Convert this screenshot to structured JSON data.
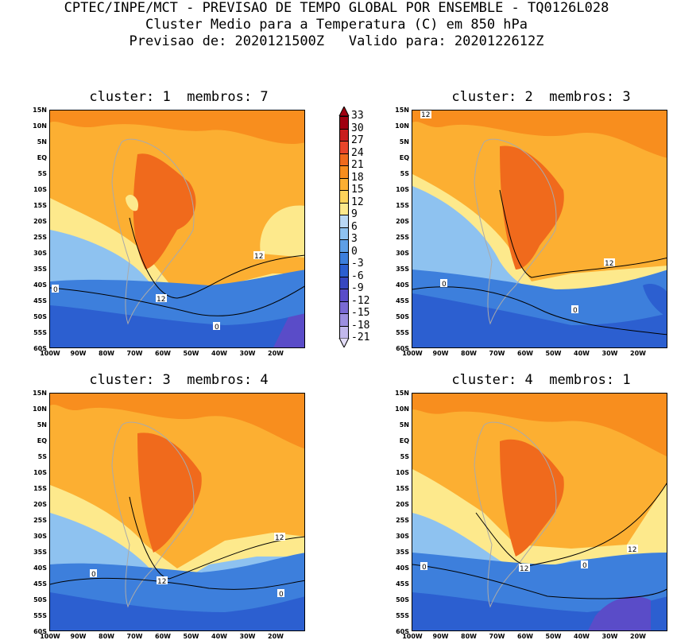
{
  "header": {
    "line1": "CPTEC/INPE/MCT - PREVISAO DE TEMPO GLOBAL POR ENSEMBLE - TQ0126L028",
    "line2": "Cluster Medio para a Temperatura (C) em 850 hPa",
    "line3": "Previsao de: 2020121500Z   Valido para: 2020122612Z"
  },
  "panels": [
    {
      "title": "cluster: 1  membros: 7",
      "contours": [
        "12",
        "12",
        "0",
        "0"
      ]
    },
    {
      "title": "cluster: 2  membros: 3",
      "contours": [
        "12",
        "12",
        "0",
        "0"
      ]
    },
    {
      "title": "cluster: 3  membros: 4",
      "contours": [
        "12",
        "12",
        "0",
        "0"
      ]
    },
    {
      "title": "cluster: 4  membros: 1",
      "contours": [
        "12",
        "12",
        "0",
        "0"
      ]
    }
  ],
  "axes": {
    "lat_labels": [
      "15N",
      "10N",
      "5N",
      "EQ",
      "5S",
      "10S",
      "15S",
      "20S",
      "25S",
      "30S",
      "35S",
      "40S",
      "45S",
      "50S",
      "55S",
      "60S"
    ],
    "lon_labels": [
      "100W",
      "90W",
      "80W",
      "70W",
      "60W",
      "50W",
      "40W",
      "30W",
      "20W"
    ]
  },
  "colorbar": {
    "labels": [
      "33",
      "30",
      "27",
      "24",
      "21",
      "18",
      "15",
      "12",
      "9",
      "6",
      "3",
      "0",
      "-3",
      "-6",
      "-9",
      "-12",
      "-15",
      "-18",
      "-21"
    ],
    "colors": [
      "#a00010",
      "#c81e1e",
      "#e8452a",
      "#f06a1c",
      "#f88e1e",
      "#fcaf32",
      "#fdd45a",
      "#fde98c",
      "#b9d8f5",
      "#8ec2f0",
      "#5e9fe6",
      "#3d7fdc",
      "#2c5fd0",
      "#3747c0",
      "#5a4cc8",
      "#7a6ad4",
      "#9c8fe0",
      "#c2b8ec",
      "#e3ddf7"
    ]
  }
}
